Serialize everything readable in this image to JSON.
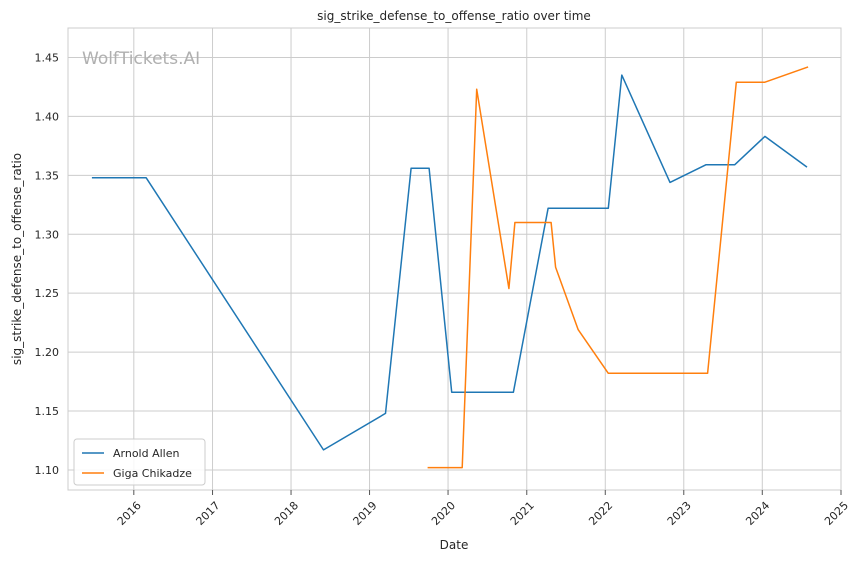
{
  "chart_data": {
    "type": "line",
    "title": "sig_strike_defense_to_offense_ratio over time",
    "xlabel": "Date",
    "ylabel": "sig_strike_defense_to_offense_ratio",
    "watermark": "WolfTickets.AI",
    "xlim": [
      "2015-03-01",
      "2025-01-01"
    ],
    "ylim": [
      1.083,
      1.475
    ],
    "x_ticks": [
      "2016",
      "2017",
      "2018",
      "2019",
      "2020",
      "2021",
      "2022",
      "2023",
      "2024",
      "2025"
    ],
    "y_ticks": [
      "1.10",
      "1.15",
      "1.20",
      "1.25",
      "1.30",
      "1.35",
      "1.40",
      "1.45"
    ],
    "grid": true,
    "legend_position": "lower-left",
    "series": [
      {
        "name": "Arnold Allen",
        "color": "#1f77b4",
        "points": [
          {
            "x": "2015-06-20",
            "y": 1.348
          },
          {
            "x": "2016-02-27",
            "y": 1.348
          },
          {
            "x": "2018-06-01",
            "y": 1.117
          },
          {
            "x": "2019-03-16",
            "y": 1.148
          },
          {
            "x": "2019-07-13",
            "y": 1.356
          },
          {
            "x": "2019-10-05",
            "y": 1.356
          },
          {
            "x": "2020-01-18",
            "y": 1.166
          },
          {
            "x": "2020-10-31",
            "y": 1.166
          },
          {
            "x": "2021-04-10",
            "y": 1.322
          },
          {
            "x": "2022-01-15",
            "y": 1.322
          },
          {
            "x": "2022-03-19",
            "y": 1.435
          },
          {
            "x": "2022-10-29",
            "y": 1.344
          },
          {
            "x": "2023-04-15",
            "y": 1.359
          },
          {
            "x": "2023-08-26",
            "y": 1.359
          },
          {
            "x": "2024-01-13",
            "y": 1.383
          },
          {
            "x": "2024-07-27",
            "y": 1.357
          }
        ]
      },
      {
        "name": "Giga Chikadze",
        "color": "#ff7f0e",
        "points": [
          {
            "x": "2019-09-28",
            "y": 1.102
          },
          {
            "x": "2020-03-07",
            "y": 1.102
          },
          {
            "x": "2020-05-13",
            "y": 1.423
          },
          {
            "x": "2020-10-10",
            "y": 1.254
          },
          {
            "x": "2020-11-07",
            "y": 1.31
          },
          {
            "x": "2021-04-24",
            "y": 1.31
          },
          {
            "x": "2021-05-15",
            "y": 1.272
          },
          {
            "x": "2021-08-28",
            "y": 1.219
          },
          {
            "x": "2022-01-15",
            "y": 1.182
          },
          {
            "x": "2023-04-22",
            "y": 1.182
          },
          {
            "x": "2023-09-02",
            "y": 1.429
          },
          {
            "x": "2024-01-13",
            "y": 1.429
          },
          {
            "x": "2024-08-01",
            "y": 1.442
          }
        ]
      }
    ]
  }
}
